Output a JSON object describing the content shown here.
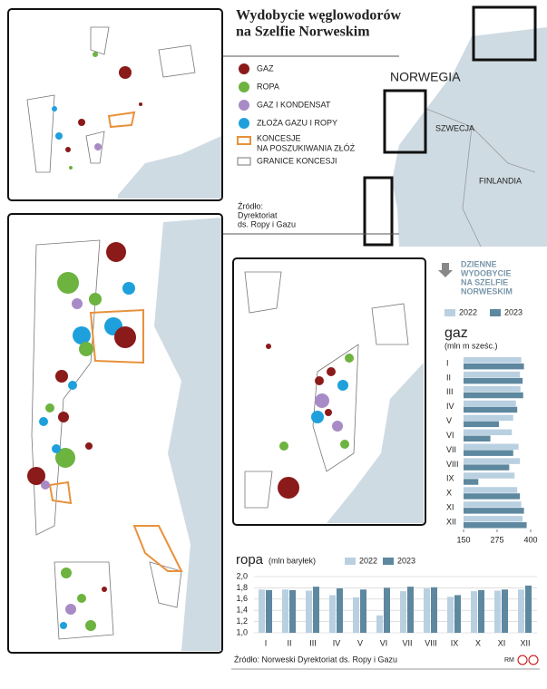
{
  "header": {
    "title_line1": "Wydobycie węglowodorów",
    "title_line2": "na Szelfie Norweskim"
  },
  "legend": {
    "items": [
      "GAZ",
      "ROPA",
      "GAZ I KONDENSAT",
      "ZŁOŻA GAZU I ROPY",
      "KONCESJE",
      "NA POSZUKIWANIA ZŁÓŻ",
      "GRANICE KONCESJI"
    ],
    "source": [
      "Źródło:",
      "Dyrektoriat",
      "ds. Ropy i Gazu"
    ]
  },
  "map": {
    "countries": [
      "NORWEGIA",
      "SZWECJA",
      "FINLANDIA"
    ]
  },
  "side_heading": [
    "DZIENNE",
    "WYDOBYCIE",
    "NA SZELFIE",
    "NORWESKIM"
  ],
  "footer": {
    "source": "Źródło: Norweski Dyrektoriat ds. Ropy i Gazu",
    "credit": "RM"
  },
  "chart_data": [
    {
      "type": "bar",
      "orientation": "horizontal",
      "title": "gaz",
      "subtitle": "(mln m sześc.)",
      "categories": [
        "I",
        "II",
        "III",
        "IV",
        "V",
        "VI",
        "VII",
        "VIII",
        "IX",
        "X",
        "XI",
        "XII"
      ],
      "series": [
        {
          "name": "2022",
          "color": "#b9d0e1",
          "values": [
            365,
            360,
            362,
            345,
            335,
            330,
            355,
            360,
            340,
            350,
            365,
            370
          ]
        },
        {
          "name": "2023",
          "color": "#5d889f",
          "values": [
            375,
            370,
            372,
            350,
            282,
            250,
            335,
            320,
            205,
            360,
            375,
            385
          ]
        }
      ],
      "xlim": [
        150,
        400
      ],
      "xticks": [
        150,
        275,
        400
      ]
    },
    {
      "type": "bar",
      "orientation": "vertical",
      "title": "ropa",
      "subtitle": "(mln baryłek)",
      "categories": [
        "I",
        "II",
        "III",
        "IV",
        "V",
        "VI",
        "VII",
        "VIII",
        "IX",
        "X",
        "XI",
        "XII"
      ],
      "series": [
        {
          "name": "2022",
          "color": "#b9d0e1",
          "values": [
            1.77,
            1.77,
            1.75,
            1.67,
            1.63,
            1.31,
            1.74,
            1.79,
            1.64,
            1.74,
            1.75,
            1.77
          ]
        },
        {
          "name": "2023",
          "color": "#5d889f",
          "values": [
            1.76,
            1.76,
            1.82,
            1.79,
            1.77,
            1.8,
            1.82,
            1.81,
            1.67,
            1.76,
            1.77,
            1.84
          ]
        }
      ],
      "ylim": [
        1.0,
        2.0
      ],
      "yticks": [
        {
          "value": 1.0,
          "label": "1,0"
        },
        {
          "value": 1.2,
          "label": "1,2"
        },
        {
          "value": 1.4,
          "label": "1,4"
        },
        {
          "value": 1.6,
          "label": "1,6"
        },
        {
          "value": 1.8,
          "label": "1,8"
        },
        {
          "value": 2.0,
          "label": "2,0"
        }
      ],
      "grid": true
    }
  ]
}
